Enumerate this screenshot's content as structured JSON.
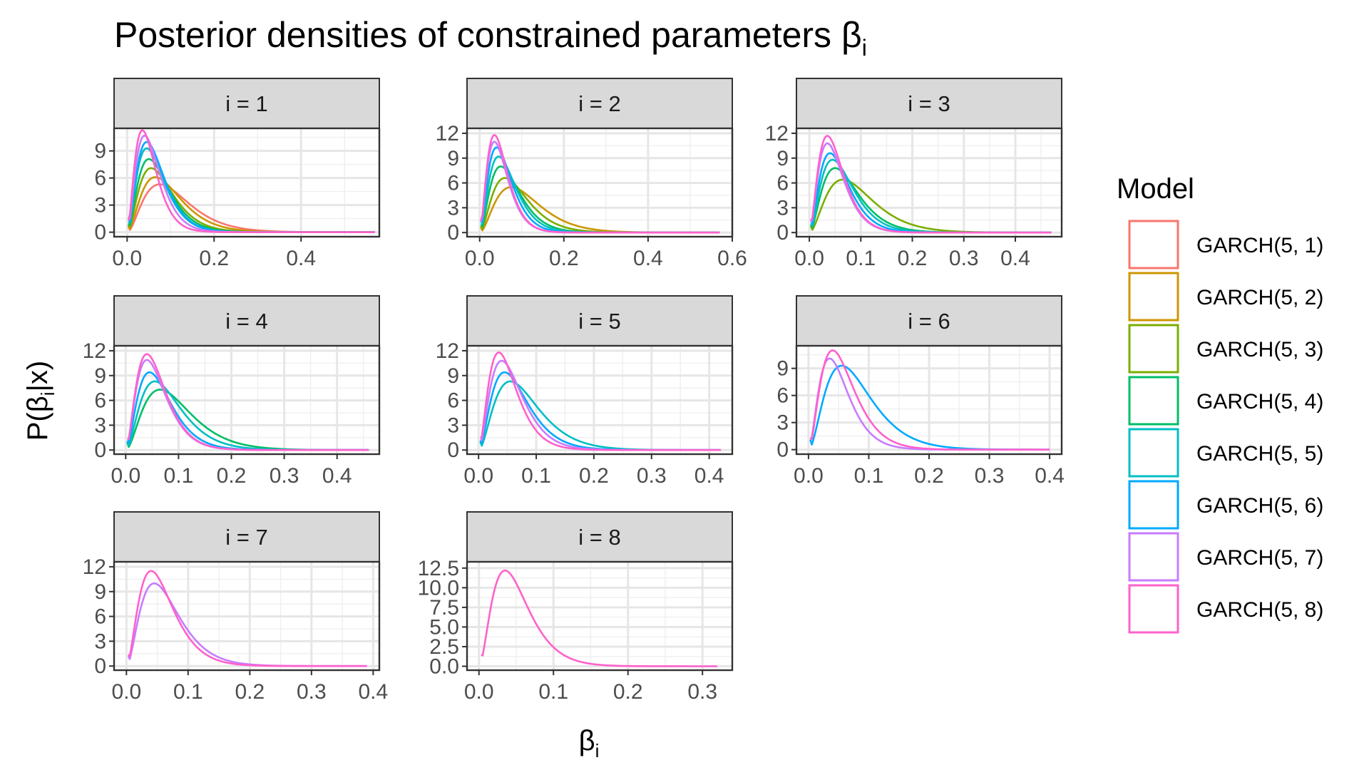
{
  "chart_data": {
    "type": "line",
    "title": {
      "text": "Posterior densities of constrained parameters β",
      "subscript": "i"
    },
    "xlabel": {
      "text": "β",
      "subscript": "i"
    },
    "ylabel": {
      "pre": "P(β",
      "subscript": "i",
      "post": "|x)"
    },
    "legend": {
      "title": "Model",
      "placement": "right",
      "entries": [
        {
          "label": "GARCH(5, 1)",
          "color": "#F8766D"
        },
        {
          "label": "GARCH(5, 2)",
          "color": "#CD9600"
        },
        {
          "label": "GARCH(5, 3)",
          "color": "#7CAE00"
        },
        {
          "label": "GARCH(5, 4)",
          "color": "#00BE67"
        },
        {
          "label": "GARCH(5, 5)",
          "color": "#00BFC4"
        },
        {
          "label": "GARCH(5, 6)",
          "color": "#00A9FF"
        },
        {
          "label": "GARCH(5, 7)",
          "color": "#C77CFF"
        },
        {
          "label": "GARCH(5, 8)",
          "color": "#FF61CC"
        }
      ]
    },
    "grid": true,
    "panels": [
      {
        "strip": "i = 1",
        "xlim": [
          -0.03,
          0.58
        ],
        "ylim": [
          -0.5,
          11.5
        ],
        "xticks": [
          0.0,
          0.2,
          0.4
        ],
        "xtick_labels": [
          "0.0",
          "0.2",
          "0.4"
        ],
        "yticks": [
          0,
          3,
          6,
          9
        ],
        "ytick_labels": [
          "0",
          "3",
          "6",
          "9"
        ],
        "series": [
          {
            "model": 1,
            "peak_x": 0.075,
            "peak_y": 5.3,
            "start_x": 0.003,
            "end_x": 0.57
          },
          {
            "model": 2,
            "peak_x": 0.065,
            "peak_y": 6.1,
            "start_x": 0.003,
            "end_x": 0.57
          },
          {
            "model": 3,
            "peak_x": 0.055,
            "peak_y": 7.1,
            "start_x": 0.003,
            "end_x": 0.57
          },
          {
            "model": 4,
            "peak_x": 0.05,
            "peak_y": 8.1,
            "start_x": 0.003,
            "end_x": 0.57
          },
          {
            "model": 5,
            "peak_x": 0.045,
            "peak_y": 9.3,
            "start_x": 0.003,
            "end_x": 0.57
          },
          {
            "model": 6,
            "peak_x": 0.045,
            "peak_y": 10.0,
            "start_x": 0.003,
            "end_x": 0.57
          },
          {
            "model": 7,
            "peak_x": 0.04,
            "peak_y": 10.7,
            "start_x": 0.003,
            "end_x": 0.57
          },
          {
            "model": 8,
            "peak_x": 0.035,
            "peak_y": 11.3,
            "start_x": 0.003,
            "end_x": 0.57
          }
        ]
      },
      {
        "strip": "i = 2",
        "xlim": [
          -0.03,
          0.6
        ],
        "ylim": [
          -0.5,
          12.6
        ],
        "xticks": [
          0.0,
          0.2,
          0.4,
          0.6
        ],
        "xtick_labels": [
          "0.0",
          "0.2",
          "0.4",
          "0.6"
        ],
        "yticks": [
          0,
          3,
          6,
          9,
          12
        ],
        "ytick_labels": [
          "0",
          "3",
          "6",
          "9",
          "12"
        ],
        "series": [
          {
            "model": 2,
            "peak_x": 0.075,
            "peak_y": 5.5,
            "start_x": 0.003,
            "end_x": 0.57
          },
          {
            "model": 3,
            "peak_x": 0.06,
            "peak_y": 6.6,
            "start_x": 0.003,
            "end_x": 0.57
          },
          {
            "model": 4,
            "peak_x": 0.05,
            "peak_y": 8.0,
            "start_x": 0.003,
            "end_x": 0.57
          },
          {
            "model": 5,
            "peak_x": 0.045,
            "peak_y": 9.2,
            "start_x": 0.003,
            "end_x": 0.57
          },
          {
            "model": 6,
            "peak_x": 0.04,
            "peak_y": 10.3,
            "start_x": 0.003,
            "end_x": 0.57
          },
          {
            "model": 7,
            "peak_x": 0.035,
            "peak_y": 11.0,
            "start_x": 0.003,
            "end_x": 0.57
          },
          {
            "model": 8,
            "peak_x": 0.035,
            "peak_y": 11.8,
            "start_x": 0.003,
            "end_x": 0.57
          }
        ]
      },
      {
        "strip": "i = 3",
        "xlim": [
          -0.025,
          0.49
        ],
        "ylim": [
          -0.5,
          12.6
        ],
        "xticks": [
          0.0,
          0.1,
          0.2,
          0.3,
          0.4
        ],
        "xtick_labels": [
          "0.0",
          "0.1",
          "0.2",
          "0.3",
          "0.4"
        ],
        "yticks": [
          0,
          3,
          6,
          9,
          12
        ],
        "ytick_labels": [
          "0",
          "3",
          "6",
          "9",
          "12"
        ],
        "series": [
          {
            "model": 3,
            "peak_x": 0.065,
            "peak_y": 6.4,
            "start_x": 0.003,
            "end_x": 0.47
          },
          {
            "model": 4,
            "peak_x": 0.05,
            "peak_y": 7.8,
            "start_x": 0.003,
            "end_x": 0.47
          },
          {
            "model": 5,
            "peak_x": 0.045,
            "peak_y": 8.8,
            "start_x": 0.003,
            "end_x": 0.47
          },
          {
            "model": 6,
            "peak_x": 0.04,
            "peak_y": 9.6,
            "start_x": 0.003,
            "end_x": 0.47
          },
          {
            "model": 7,
            "peak_x": 0.035,
            "peak_y": 10.8,
            "start_x": 0.003,
            "end_x": 0.47
          },
          {
            "model": 8,
            "peak_x": 0.035,
            "peak_y": 11.7,
            "start_x": 0.003,
            "end_x": 0.47
          }
        ]
      },
      {
        "strip": "i = 4",
        "xlim": [
          -0.022,
          0.48
        ],
        "ylim": [
          -0.5,
          12.6
        ],
        "xticks": [
          0.0,
          0.1,
          0.2,
          0.3,
          0.4
        ],
        "xtick_labels": [
          "0.0",
          "0.1",
          "0.2",
          "0.3",
          "0.4"
        ],
        "yticks": [
          0,
          3,
          6,
          9,
          12
        ],
        "ytick_labels": [
          "0",
          "3",
          "6",
          "9",
          "12"
        ],
        "series": [
          {
            "model": 4,
            "peak_x": 0.065,
            "peak_y": 7.3,
            "start_x": 0.003,
            "end_x": 0.46
          },
          {
            "model": 5,
            "peak_x": 0.055,
            "peak_y": 8.3,
            "start_x": 0.003,
            "end_x": 0.46
          },
          {
            "model": 6,
            "peak_x": 0.045,
            "peak_y": 9.4,
            "start_x": 0.003,
            "end_x": 0.46
          },
          {
            "model": 7,
            "peak_x": 0.04,
            "peak_y": 10.9,
            "start_x": 0.003,
            "end_x": 0.46
          },
          {
            "model": 8,
            "peak_x": 0.04,
            "peak_y": 11.6,
            "start_x": 0.003,
            "end_x": 0.46
          }
        ]
      },
      {
        "strip": "i = 5",
        "xlim": [
          -0.02,
          0.44
        ],
        "ylim": [
          -0.5,
          12.6
        ],
        "xticks": [
          0.0,
          0.1,
          0.2,
          0.3,
          0.4
        ],
        "xtick_labels": [
          "0.0",
          "0.1",
          "0.2",
          "0.3",
          "0.4"
        ],
        "yticks": [
          0,
          3,
          6,
          9,
          12
        ],
        "ytick_labels": [
          "0",
          "3",
          "6",
          "9",
          "12"
        ],
        "series": [
          {
            "model": 5,
            "peak_x": 0.055,
            "peak_y": 8.3,
            "start_x": 0.003,
            "end_x": 0.42
          },
          {
            "model": 6,
            "peak_x": 0.045,
            "peak_y": 9.4,
            "start_x": 0.003,
            "end_x": 0.42
          },
          {
            "model": 7,
            "peak_x": 0.04,
            "peak_y": 10.8,
            "start_x": 0.003,
            "end_x": 0.42
          },
          {
            "model": 8,
            "peak_x": 0.035,
            "peak_y": 11.8,
            "start_x": 0.003,
            "end_x": 0.42
          }
        ]
      },
      {
        "strip": "i = 6",
        "xlim": [
          -0.02,
          0.42
        ],
        "ylim": [
          -0.5,
          11.5
        ],
        "xticks": [
          0.0,
          0.1,
          0.2,
          0.3,
          0.4
        ],
        "xtick_labels": [
          "0.0",
          "0.1",
          "0.2",
          "0.3",
          "0.4"
        ],
        "yticks": [
          0,
          3,
          6,
          9
        ],
        "ytick_labels": [
          "0",
          "3",
          "6",
          "9"
        ],
        "series": [
          {
            "model": 6,
            "peak_x": 0.055,
            "peak_y": 9.3,
            "start_x": 0.003,
            "end_x": 0.4
          },
          {
            "model": 7,
            "peak_x": 0.035,
            "peak_y": 10.1,
            "start_x": 0.003,
            "end_x": 0.4
          },
          {
            "model": 8,
            "peak_x": 0.04,
            "peak_y": 11.0,
            "start_x": 0.003,
            "end_x": 0.4
          }
        ]
      },
      {
        "strip": "i = 7",
        "xlim": [
          -0.02,
          0.41
        ],
        "ylim": [
          -0.5,
          12.6
        ],
        "xticks": [
          0.0,
          0.1,
          0.2,
          0.3,
          0.4
        ],
        "xtick_labels": [
          "0.0",
          "0.1",
          "0.2",
          "0.3",
          "0.4"
        ],
        "yticks": [
          0,
          3,
          6,
          9,
          12
        ],
        "ytick_labels": [
          "0",
          "3",
          "6",
          "9",
          "12"
        ],
        "series": [
          {
            "model": 7,
            "peak_x": 0.045,
            "peak_y": 10.0,
            "start_x": 0.003,
            "end_x": 0.39
          },
          {
            "model": 8,
            "peak_x": 0.04,
            "peak_y": 11.5,
            "start_x": 0.003,
            "end_x": 0.39
          }
        ]
      },
      {
        "strip": "i = 8",
        "xlim": [
          -0.016,
          0.34
        ],
        "ylim": [
          -0.5,
          13.3
        ],
        "xticks": [
          0.0,
          0.1,
          0.2,
          0.3
        ],
        "xtick_labels": [
          "0.0",
          "0.1",
          "0.2",
          "0.3"
        ],
        "yticks": [
          0,
          2.5,
          5,
          7.5,
          10,
          12.5
        ],
        "ytick_labels": [
          "0.0",
          "2.5",
          "5.0",
          "7.5",
          "10.0",
          "12.5"
        ],
        "series": [
          {
            "model": 8,
            "peak_x": 0.035,
            "peak_y": 12.2,
            "start_x": 0.003,
            "end_x": 0.32
          }
        ]
      }
    ]
  }
}
